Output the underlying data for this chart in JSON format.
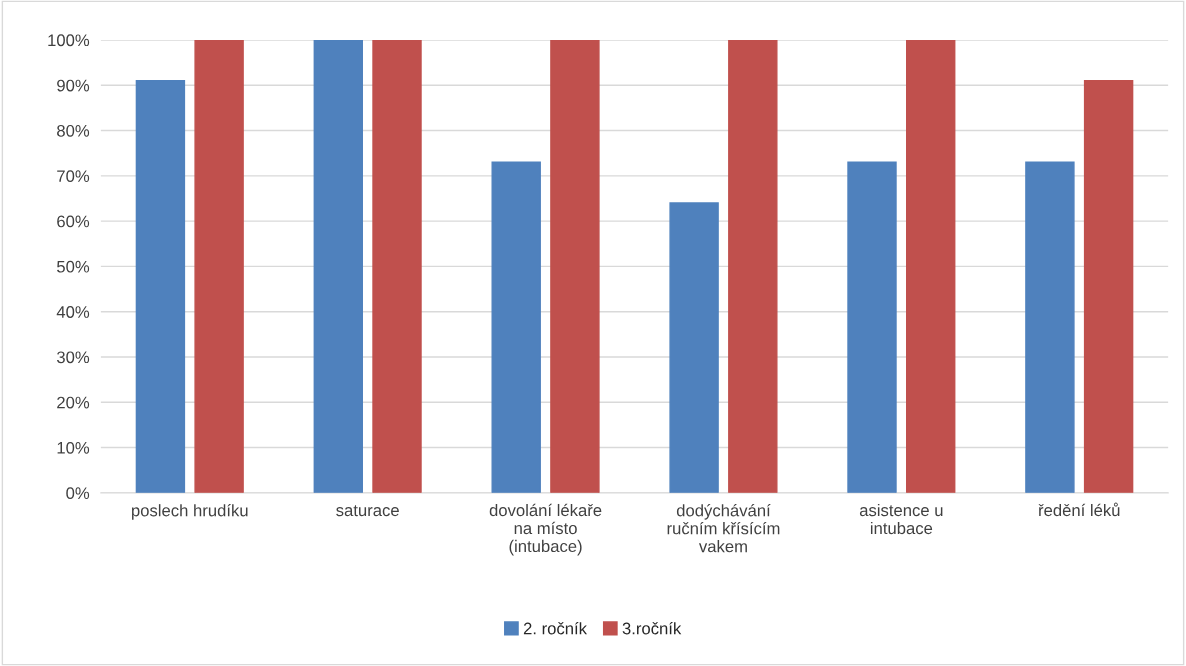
{
  "chart_data": {
    "type": "bar",
    "categories": [
      "poslech hrudíku",
      "saturace",
      "dovolání lékaře\nna místo\n(intubace)",
      "dodýchávání\nručním křísícím\nvakem",
      "asistence u\nintubace",
      "ředění léků"
    ],
    "series": [
      {
        "name": "2. ročník",
        "color": "#4f81bd",
        "values": [
          91,
          100,
          73,
          64,
          73,
          73
        ]
      },
      {
        "name": "3.ročník",
        "color": "#c0504d",
        "values": [
          100,
          100,
          100,
          100,
          100,
          91
        ]
      }
    ],
    "ylim": [
      0,
      100
    ],
    "yticks": [
      {
        "value": 0,
        "label": "0%"
      },
      {
        "value": 10,
        "label": "10%"
      },
      {
        "value": 20,
        "label": "20%"
      },
      {
        "value": 30,
        "label": "30%"
      },
      {
        "value": 40,
        "label": "40%"
      },
      {
        "value": 50,
        "label": "50%"
      },
      {
        "value": 60,
        "label": "60%"
      },
      {
        "value": 70,
        "label": "70%"
      },
      {
        "value": 80,
        "label": "80%"
      },
      {
        "value": 90,
        "label": "90%"
      },
      {
        "value": 100,
        "label": "100%"
      }
    ],
    "grid": "y",
    "legend": "bottom"
  }
}
